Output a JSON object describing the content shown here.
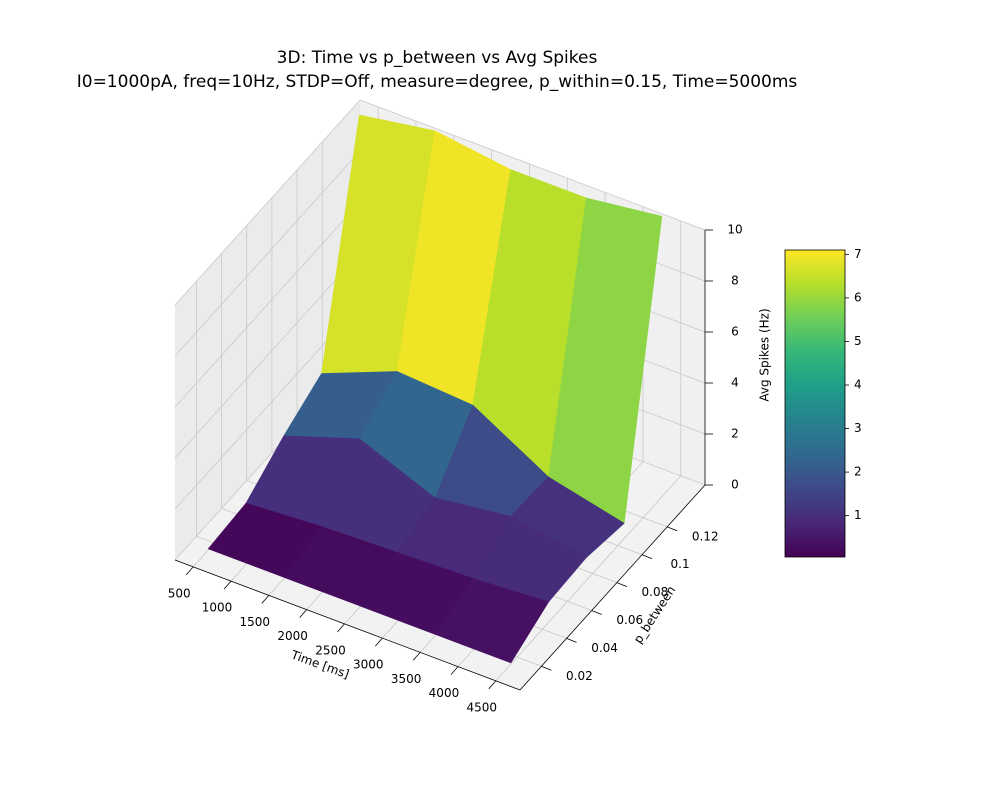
{
  "chart_data": {
    "type": "surface",
    "title": "3D: Time vs p_between vs Avg Spikes",
    "subtitle": "I0=1000pA, freq=10Hz, STDP=Off, measure=degree, p_within=0.15, Time=5000ms",
    "x_label": "Time [ms]",
    "y_label": "p_between",
    "z_label": "Avg Spikes (Hz)",
    "x": [
      500,
      1500,
      2500,
      3500,
      4500
    ],
    "y": [
      0.015,
      0.045,
      0.075,
      0.105,
      0.135
    ],
    "z": [
      [
        0.05,
        0.05,
        0.05,
        0.05,
        0.05
      ],
      [
        0.2,
        0.4,
        0.5,
        0.6,
        0.8
      ],
      [
        1.2,
        2.2,
        1.0,
        1.4,
        0.9
      ],
      [
        2.0,
        3.2,
        3.0,
        1.3,
        0.6
      ],
      [
        10.5,
        11,
        10.6,
        10.6,
        11
      ]
    ],
    "xlim": [
      260,
      4820
    ],
    "ylim": [
      0.003,
      0.15
    ],
    "zlim": [
      0,
      10
    ],
    "xticks": [
      500,
      1000,
      1500,
      2000,
      2500,
      3000,
      3500,
      4000,
      4500
    ],
    "yticks": [
      0.02,
      0.04,
      0.06,
      0.08,
      0.1,
      0.12
    ],
    "zticks": [
      0,
      2,
      4,
      6,
      8,
      10
    ],
    "cmap": "viridis",
    "clim": [
      0.05,
      7.1
    ],
    "colorbar_ticks": [
      1,
      2,
      3,
      4,
      5,
      6,
      7
    ],
    "grid": true
  }
}
